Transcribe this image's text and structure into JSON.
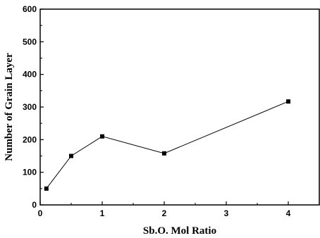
{
  "chart_data": {
    "type": "line",
    "title": "",
    "xlabel": "Sb.O. Mol Ratio",
    "ylabel": "Number of Grain Layer",
    "xlim": [
      0,
      4.5
    ],
    "ylim": [
      0,
      600
    ],
    "xticks": [
      "0",
      "1",
      "2",
      "3",
      "4"
    ],
    "xtick_values": [
      0,
      1,
      2,
      3,
      4
    ],
    "yticks": [
      "0",
      "100",
      "200",
      "300",
      "400",
      "500",
      "600"
    ],
    "ytick_values": [
      0,
      100,
      200,
      300,
      400,
      500,
      600
    ],
    "grid": false,
    "legend": "none",
    "series": [
      {
        "x": [
          0.1,
          0.5,
          1,
          2,
          4
        ],
        "y": [
          50,
          150,
          210,
          158,
          317
        ],
        "color": "#000000",
        "marker": "square"
      }
    ]
  }
}
